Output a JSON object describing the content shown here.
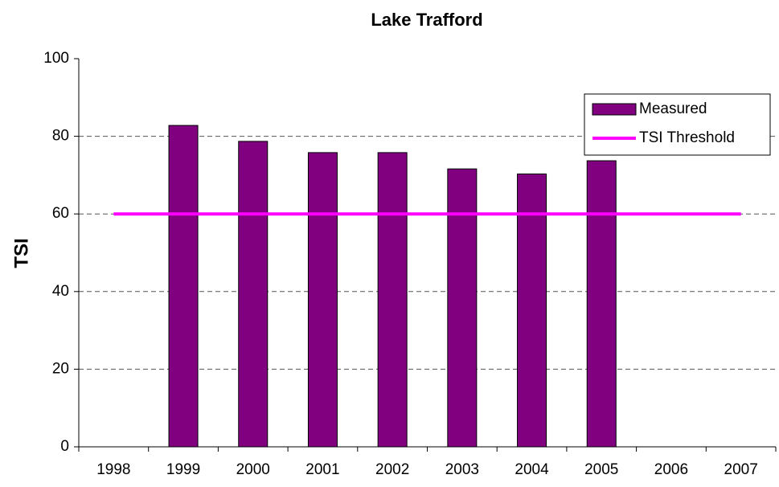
{
  "chart_data": {
    "type": "combo",
    "title": "Lake Trafford",
    "y_label": "TSI",
    "categories": [
      "1998",
      "1999",
      "2000",
      "2001",
      "2002",
      "2003",
      "2004",
      "2005",
      "2006",
      "2007"
    ],
    "series": [
      {
        "name": "Measured",
        "type": "bar",
        "color": "#800080",
        "values": [
          null,
          82.8,
          78.7,
          75.8,
          75.8,
          71.6,
          70.3,
          73.7,
          null,
          null
        ]
      },
      {
        "name": "TSI Threshold",
        "type": "line",
        "color": "#ff00ff",
        "values": [
          60,
          60,
          60,
          60,
          60,
          60,
          60,
          60,
          60,
          60
        ]
      }
    ],
    "ylim": [
      0,
      100
    ],
    "yticks": [
      0,
      20,
      40,
      60,
      80,
      100
    ],
    "grid": true,
    "legend": "upper right"
  }
}
